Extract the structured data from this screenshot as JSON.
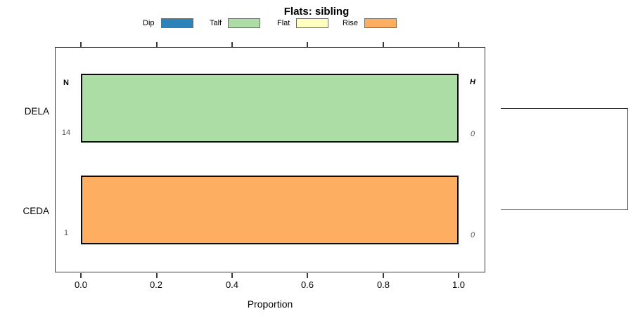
{
  "title": "Flats: sibling",
  "legend": {
    "items": [
      {
        "label": "Dip",
        "color": "#2b83ba"
      },
      {
        "label": "Talf",
        "color": "#abdda4"
      },
      {
        "label": "Flat",
        "color": "#ffffbf"
      },
      {
        "label": "Rise",
        "color": "#fdae61"
      }
    ]
  },
  "headers": {
    "left": "N",
    "right": "H"
  },
  "rows": [
    {
      "category": "DELA",
      "segment": "Talf",
      "color": "#abdda4",
      "count_label": "14",
      "h_label": "0"
    },
    {
      "category": "CEDA",
      "segment": "Rise",
      "color": "#fdae61",
      "count_label": "1",
      "h_label": "0"
    }
  ],
  "axis": {
    "x_label": "Proportion",
    "x_ticks": [
      "0.0",
      "0.2",
      "0.4",
      "0.6",
      "0.8",
      "1.0"
    ]
  },
  "chart_data": {
    "type": "bar",
    "orientation": "horizontal",
    "title": "Flats: sibling",
    "xlabel": "Proportion",
    "ylabel": "",
    "xlim": [
      0,
      1
    ],
    "x_tick_values": [
      0.0,
      0.2,
      0.4,
      0.6,
      0.8,
      1.0
    ],
    "grid": false,
    "legend_position": "top",
    "categories": [
      "DELA",
      "CEDA"
    ],
    "series": [
      {
        "name": "Dip",
        "color": "#2b83ba",
        "values": [
          0.0,
          0.0
        ]
      },
      {
        "name": "Talf",
        "color": "#abdda4",
        "values": [
          1.0,
          0.0
        ]
      },
      {
        "name": "Flat",
        "color": "#ffffbf",
        "values": [
          0.0,
          0.0
        ]
      },
      {
        "name": "Rise",
        "color": "#fdae61",
        "values": [
          0.0,
          1.0
        ]
      }
    ],
    "row_annotations": {
      "N": [
        14,
        1
      ],
      "H": [
        0,
        0
      ]
    },
    "extras": "right-side bracket (dendrogram link) joining DELA and CEDA rows"
  }
}
